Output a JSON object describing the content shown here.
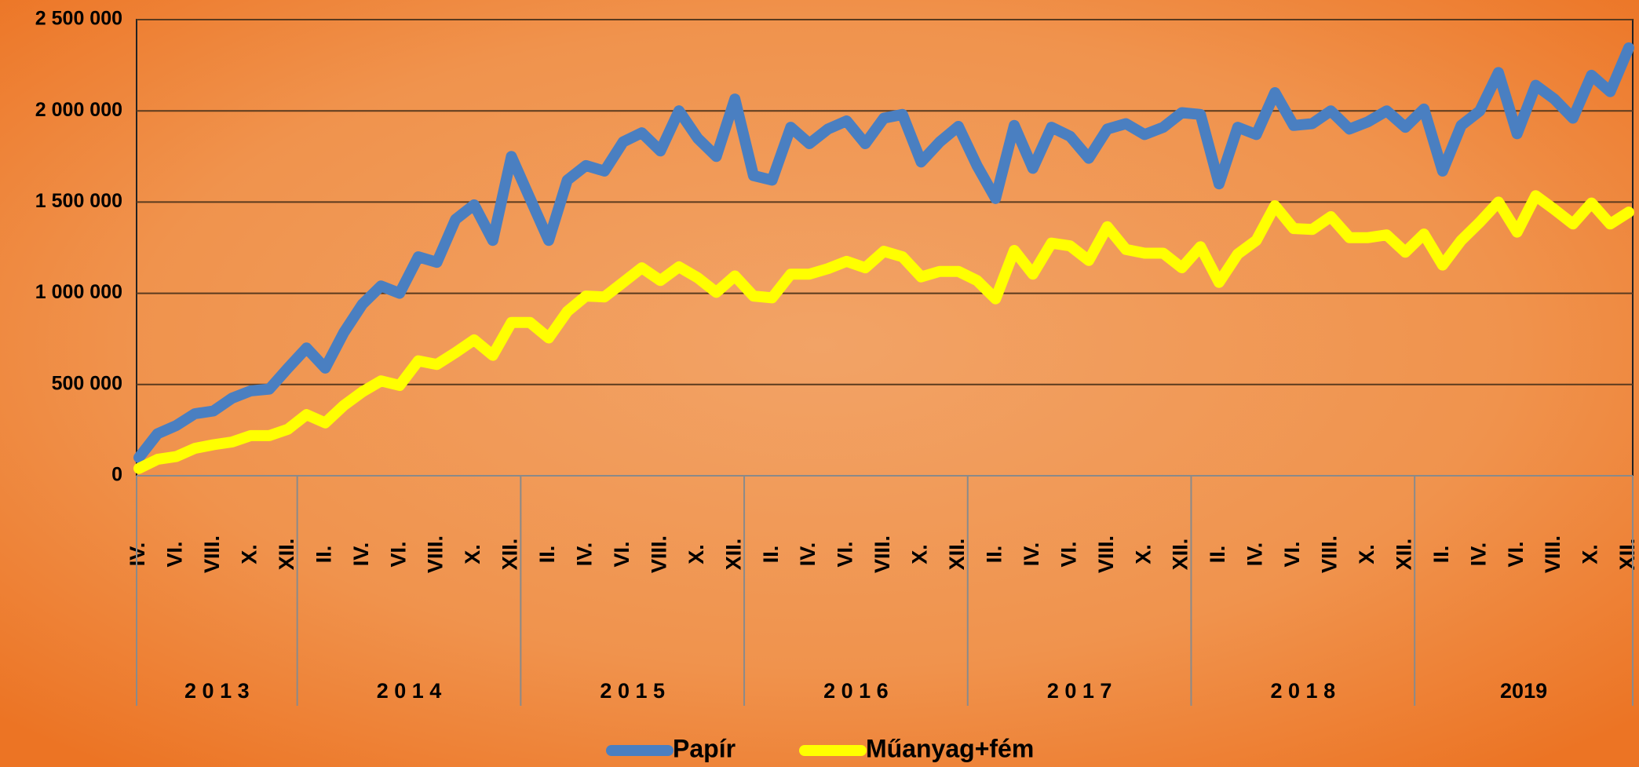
{
  "chart_data": {
    "type": "line",
    "categories": [
      "IV.",
      null,
      "VI.",
      null,
      "VIII.",
      null,
      "X.",
      null,
      "XII.",
      null,
      "II.",
      null,
      "IV.",
      null,
      "VI.",
      null,
      "VIII.",
      null,
      "X.",
      null,
      "XII.",
      null,
      "II.",
      null,
      "IV.",
      null,
      "VI.",
      null,
      "VIII.",
      null,
      "X.",
      null,
      "XII.",
      null,
      "II.",
      null,
      "IV.",
      null,
      "VI.",
      null,
      "VIII.",
      null,
      "X.",
      null,
      "XII.",
      null,
      "II.",
      null,
      "IV.",
      null,
      "VI.",
      null,
      "VIII.",
      null,
      "X.",
      null,
      "XII.",
      null,
      "II.",
      null,
      "IV.",
      null,
      "VI.",
      null,
      "VIII.",
      null,
      "X.",
      null,
      "XII.",
      null,
      "II.",
      null,
      "IV.",
      null,
      "VI.",
      null,
      "VIII.",
      null,
      "X.",
      null,
      "XII."
    ],
    "year_groups": [
      {
        "label": "2 0 1 3",
        "span": 9
      },
      {
        "label": "2 0 1 4",
        "span": 12
      },
      {
        "label": "2 0 1 5",
        "span": 12
      },
      {
        "label": "2 0 1 6",
        "span": 12
      },
      {
        "label": "2 0 1 7",
        "span": 12
      },
      {
        "label": "2 0 1 8",
        "span": 12
      },
      {
        "label": "2019",
        "span": 12
      }
    ],
    "series": [
      {
        "name": "Papír",
        "color": "#4a7fc1",
        "values": [
          100000,
          230000,
          275000,
          340000,
          355000,
          425000,
          465000,
          475000,
          590000,
          700000,
          590000,
          785000,
          940000,
          1040000,
          1000000,
          1200000,
          1170000,
          1405000,
          1485000,
          1290000,
          1750000,
          1520000,
          1290000,
          1620000,
          1700000,
          1670000,
          1830000,
          1880000,
          1780000,
          2000000,
          1850000,
          1750000,
          2065000,
          1645000,
          1620000,
          1910000,
          1820000,
          1900000,
          1945000,
          1820000,
          1960000,
          1980000,
          1720000,
          1830000,
          1915000,
          1700000,
          1520000,
          1920000,
          1685000,
          1910000,
          1860000,
          1740000,
          1900000,
          1930000,
          1870000,
          1910000,
          1990000,
          1980000,
          1600000,
          1910000,
          1870000,
          2100000,
          1920000,
          1930000,
          2000000,
          1900000,
          1940000,
          2000000,
          1910000,
          2010000,
          1670000,
          1920000,
          2000000,
          2210000,
          1875000,
          2140000,
          2065000,
          1960000,
          2195000,
          2105000,
          2345000
        ]
      },
      {
        "name": "Műanyag+fém",
        "color": "#ffff00",
        "values": [
          40000,
          90000,
          105000,
          150000,
          170000,
          185000,
          220000,
          220000,
          255000,
          335000,
          290000,
          385000,
          460000,
          520000,
          495000,
          630000,
          610000,
          675000,
          745000,
          660000,
          840000,
          840000,
          755000,
          900000,
          985000,
          980000,
          1060000,
          1140000,
          1070000,
          1145000,
          1085000,
          1005000,
          1095000,
          985000,
          975000,
          1105000,
          1105000,
          1135000,
          1175000,
          1140000,
          1230000,
          1200000,
          1090000,
          1120000,
          1120000,
          1070000,
          970000,
          1235000,
          1105000,
          1275000,
          1260000,
          1180000,
          1365000,
          1240000,
          1220000,
          1220000,
          1140000,
          1255000,
          1060000,
          1215000,
          1290000,
          1480000,
          1355000,
          1350000,
          1420000,
          1305000,
          1305000,
          1320000,
          1225000,
          1325000,
          1155000,
          1290000,
          1390000,
          1500000,
          1335000,
          1535000,
          1460000,
          1380000,
          1495000,
          1380000,
          1445000
        ]
      }
    ],
    "ylim": [
      0,
      2500000
    ],
    "yticks": [
      0,
      {
        "value": 500000,
        "label": "500 000"
      },
      {
        "value": 1000000,
        "label": "1 000 000"
      },
      {
        "value": 1500000,
        "label": "1 500 000"
      },
      {
        "value": 2000000,
        "label": "2 000 000"
      },
      {
        "value": 2500000,
        "label": "2 500 000"
      }
    ],
    "grid": true,
    "legend": "bottom"
  }
}
